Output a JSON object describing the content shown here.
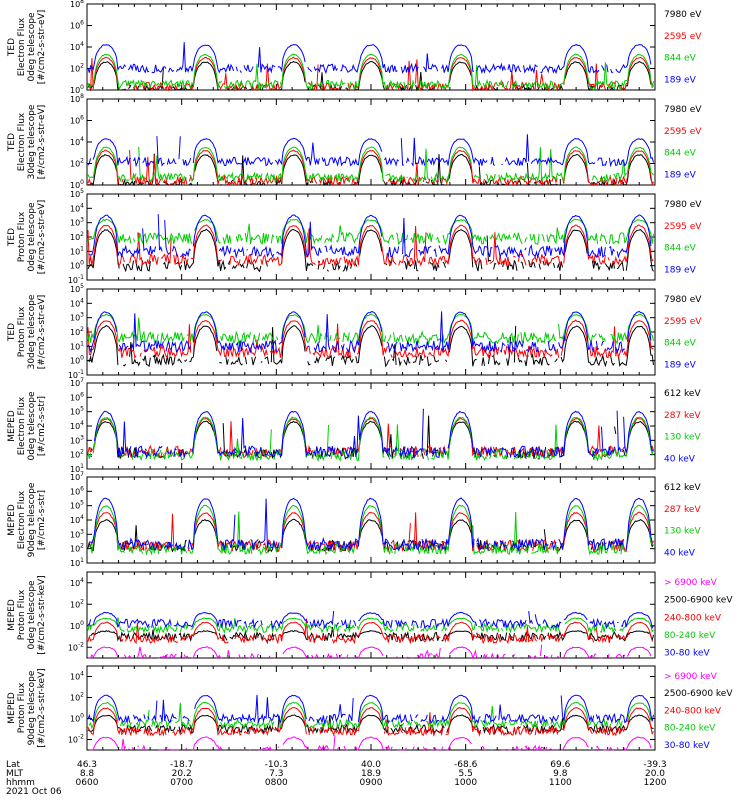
{
  "chart_data": {
    "type": "line",
    "title": "",
    "x_axis": {
      "rows": [
        {
          "label": "Lat",
          "values": [
            "46.3",
            "-18.7",
            "-10.3",
            "40.0",
            "-68.6",
            "69.6",
            "-39.3"
          ]
        },
        {
          "label": "MLT",
          "values": [
            "8.8",
            "20.2",
            "7.3",
            "18.9",
            "5.5",
            "9.8",
            "20.0"
          ]
        },
        {
          "label": "hhmm",
          "values": [
            "0600",
            "0700",
            "0800",
            "0900",
            "1000",
            "1100",
            "1200"
          ]
        }
      ],
      "date": "2021 Oct 06",
      "range": [
        "0600",
        "1200"
      ]
    },
    "passes_utc": [
      "0612",
      "0715",
      "0811",
      "0900",
      "0957",
      "1110",
      "1150"
    ],
    "panels": [
      {
        "ylabel": [
          "TED",
          "Electron Flux",
          "0deg telescope",
          "[#/cm2-s-str-eV]"
        ],
        "ytick_exponents": [
          0,
          2,
          4,
          6,
          8
        ],
        "ylim_exp": [
          0,
          8
        ],
        "series": [
          {
            "name": "7980 eV",
            "color": "#000000",
            "peak_exp": 2.6,
            "base_exp": 0.1
          },
          {
            "name": "2595 eV",
            "color": "#ff0000",
            "peak_exp": 3.0,
            "base_exp": 0.3
          },
          {
            "name": "844 eV",
            "color": "#00cc00",
            "peak_exp": 3.3,
            "base_exp": 0.5
          },
          {
            "name": "189 eV",
            "color": "#0000ff",
            "peak_exp": 4.2,
            "base_exp": 2.0
          }
        ]
      },
      {
        "ylabel": [
          "TED",
          "Electron Flux",
          "30deg telescope",
          "[#/cm2-s-str-eV]"
        ],
        "ytick_exponents": [
          0,
          2,
          4,
          6,
          8
        ],
        "ylim_exp": [
          0,
          8
        ],
        "series": [
          {
            "name": "7980 eV",
            "color": "#000000",
            "peak_exp": 2.8,
            "base_exp": 0.1
          },
          {
            "name": "2595 eV",
            "color": "#ff0000",
            "peak_exp": 3.2,
            "base_exp": 0.4
          },
          {
            "name": "844 eV",
            "color": "#00cc00",
            "peak_exp": 3.5,
            "base_exp": 0.7
          },
          {
            "name": "189 eV",
            "color": "#0000ff",
            "peak_exp": 4.3,
            "base_exp": 2.2
          }
        ]
      },
      {
        "ylabel": [
          "TED",
          "Proton Flux",
          "0deg telescope",
          "[#/cm2-s-str-eV]"
        ],
        "ytick_exponents": [
          -1,
          0,
          1,
          2,
          3,
          4,
          5
        ],
        "ylim_exp": [
          -1,
          5
        ],
        "series": [
          {
            "name": "7980 eV",
            "color": "#000000",
            "peak_exp": 2.5,
            "base_exp": 0.0
          },
          {
            "name": "2595 eV",
            "color": "#ff0000",
            "peak_exp": 2.8,
            "base_exp": 0.4
          },
          {
            "name": "844 eV",
            "color": "#00cc00",
            "peak_exp": 3.2,
            "base_exp": 1.9
          },
          {
            "name": "189 eV",
            "color": "#0000ff",
            "peak_exp": 3.5,
            "base_exp": 1.0
          }
        ]
      },
      {
        "ylabel": [
          "TED",
          "Proton Flux",
          "30deg telescope",
          "[#/cm2-s-str-eV]"
        ],
        "ytick_exponents": [
          -1,
          0,
          1,
          2,
          3,
          4,
          5
        ],
        "ylim_exp": [
          -1,
          5
        ],
        "series": [
          {
            "name": "7980 eV",
            "color": "#000000",
            "peak_exp": 2.4,
            "base_exp": 0.0
          },
          {
            "name": "2595 eV",
            "color": "#ff0000",
            "peak_exp": 2.8,
            "base_exp": 0.6
          },
          {
            "name": "844 eV",
            "color": "#00cc00",
            "peak_exp": 3.2,
            "base_exp": 1.6
          },
          {
            "name": "189 eV",
            "color": "#0000ff",
            "peak_exp": 3.4,
            "base_exp": 1.0
          }
        ]
      },
      {
        "ylabel": [
          "MEPED",
          "Electron Flux",
          "0deg telescope",
          "[#/cm2-s-str]"
        ],
        "ytick_exponents": [
          1,
          2,
          3,
          4,
          5,
          6,
          7
        ],
        "ylim_exp": [
          1,
          7
        ],
        "series": [
          {
            "name": "612 keV",
            "color": "#000000",
            "peak_exp": 4.3,
            "base_exp": 2.1
          },
          {
            "name": "287 keV",
            "color": "#ff0000",
            "peak_exp": 4.5,
            "base_exp": 2.2
          },
          {
            "name": "130 keV",
            "color": "#00cc00",
            "peak_exp": 4.6,
            "base_exp": 2.0
          },
          {
            "name": "40 keV",
            "color": "#0000ff",
            "peak_exp": 5.0,
            "base_exp": 2.2
          }
        ]
      },
      {
        "ylabel": [
          "MEPED",
          "Electron Flux",
          "90deg telescope",
          "[#/cm2-s-str]"
        ],
        "ytick_exponents": [
          1,
          2,
          3,
          4,
          5,
          6,
          7
        ],
        "ylim_exp": [
          1,
          7
        ],
        "series": [
          {
            "name": "612 keV",
            "color": "#000000",
            "peak_exp": 4.0,
            "base_exp": 2.2
          },
          {
            "name": "287 keV",
            "color": "#ff0000",
            "peak_exp": 4.5,
            "base_exp": 2.2
          },
          {
            "name": "130 keV",
            "color": "#00cc00",
            "peak_exp": 5.0,
            "base_exp": 2.0
          },
          {
            "name": "40 keV",
            "color": "#0000ff",
            "peak_exp": 5.5,
            "base_exp": 2.3
          }
        ]
      },
      {
        "ylabel": [
          "MEPED",
          "Proton Flux",
          "0deg telescope",
          "[#/cm2-s-str-keV]"
        ],
        "ytick_exponents": [
          -2,
          0,
          2,
          4
        ],
        "ylim_exp": [
          -3,
          5
        ],
        "series": [
          {
            "name": "> 6900 keV",
            "color": "#ff00ff",
            "peak_exp": -2.0,
            "base_exp": -3.0
          },
          {
            "name": "2500-6900 keV",
            "color": "#000000",
            "peak_exp": -0.5,
            "base_exp": -1.0
          },
          {
            "name": "240-800 keV",
            "color": "#ff0000",
            "peak_exp": 0.3,
            "base_exp": -1.2
          },
          {
            "name": "80-240 keV",
            "color": "#00cc00",
            "peak_exp": 0.7,
            "base_exp": -0.2
          },
          {
            "name": "30-80 keV",
            "color": "#0000ff",
            "peak_exp": 1.2,
            "base_exp": 0.2
          }
        ]
      },
      {
        "ylabel": [
          "MEPED",
          "Proton Flux",
          "90deg telescope",
          "[#/cm2-s-str-keV]"
        ],
        "ytick_exponents": [
          -2,
          0,
          2,
          4
        ],
        "ylim_exp": [
          -3,
          5
        ],
        "series": [
          {
            "name": "> 6900 keV",
            "color": "#ff00ff",
            "peak_exp": -1.8,
            "base_exp": -3.0
          },
          {
            "name": "2500-6900 keV",
            "color": "#000000",
            "peak_exp": 0.3,
            "base_exp": -1.0
          },
          {
            "name": "240-800 keV",
            "color": "#ff0000",
            "peak_exp": 1.0,
            "base_exp": -1.2
          },
          {
            "name": "80-240 keV",
            "color": "#00cc00",
            "peak_exp": 1.5,
            "base_exp": -0.5
          },
          {
            "name": "30-80 keV",
            "color": "#0000ff",
            "peak_exp": 2.2,
            "base_exp": 0.0
          }
        ]
      }
    ]
  }
}
